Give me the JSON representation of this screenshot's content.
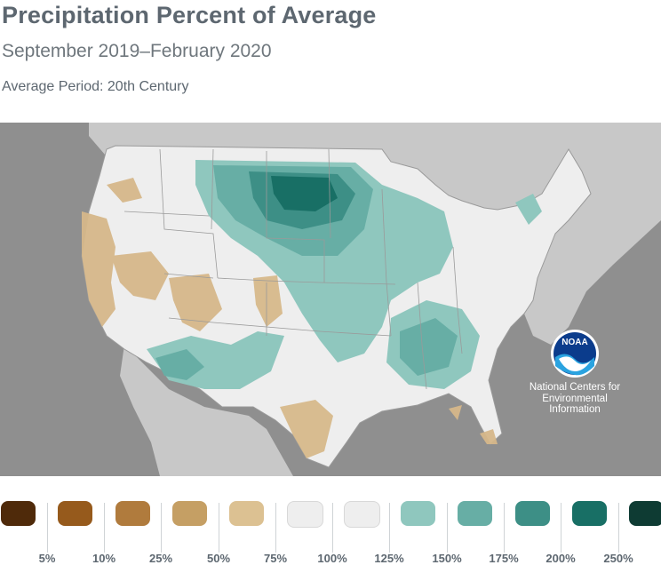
{
  "header": {
    "title": "Precipitation Percent of Average",
    "subtitle": "September 2019–February 2020",
    "period": "Average Period: 20th Century"
  },
  "logo": {
    "text": "NOAA",
    "caption": [
      "National Centers for",
      "Environmental",
      "Information"
    ]
  },
  "legend": {
    "labels": [
      "5%",
      "10%",
      "25%",
      "50%",
      "75%",
      "100%",
      "125%",
      "150%",
      "175%",
      "200%",
      "250%"
    ],
    "colors": [
      "#4f2a0a",
      "#965a1c",
      "#b07b3d",
      "#c59f64",
      "#dcc192",
      "#eeeeee",
      "#eeeeee",
      "#8fc7be",
      "#67aea5",
      "#3d8f86",
      "#186f65",
      "#0e3b33"
    ]
  },
  "colors": {
    "ocean": "#8f8f8f",
    "land_outside": "#c8c8c8",
    "land_us": "#eeeeee",
    "water": "#7b7b7b",
    "text": "#5d6770"
  }
}
